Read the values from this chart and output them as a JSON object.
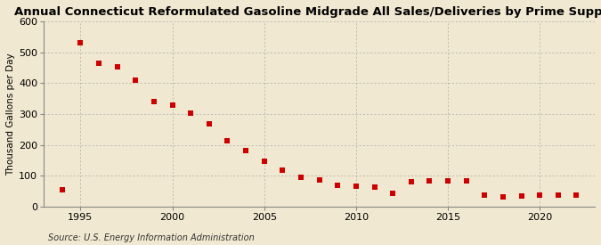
{
  "title": "Annual Connecticut Reformulated Gasoline Midgrade All Sales/Deliveries by Prime Supplier",
  "ylabel": "Thousand Gallons per Day",
  "source": "Source: U.S. Energy Information Administration",
  "background_color": "#f0e8d0",
  "plot_background_color": "#f0e8d0",
  "marker_color": "#cc0000",
  "marker": "s",
  "markersize": 4,
  "xlim": [
    1993.0,
    2023.0
  ],
  "ylim": [
    0,
    600
  ],
  "yticks": [
    0,
    100,
    200,
    300,
    400,
    500,
    600
  ],
  "xticks": [
    1995,
    2000,
    2005,
    2010,
    2015,
    2020
  ],
  "years": [
    1994,
    1995,
    1996,
    1997,
    1998,
    1999,
    2000,
    2001,
    2002,
    2003,
    2004,
    2005,
    2006,
    2007,
    2008,
    2009,
    2010,
    2011,
    2012,
    2013,
    2014,
    2015,
    2016,
    2017,
    2018,
    2019,
    2020,
    2021,
    2022
  ],
  "values": [
    55,
    530,
    465,
    452,
    410,
    340,
    328,
    303,
    268,
    212,
    182,
    148,
    118,
    95,
    86,
    70,
    65,
    62,
    42,
    80,
    82,
    84,
    82,
    38,
    31,
    35,
    37,
    37,
    37
  ]
}
